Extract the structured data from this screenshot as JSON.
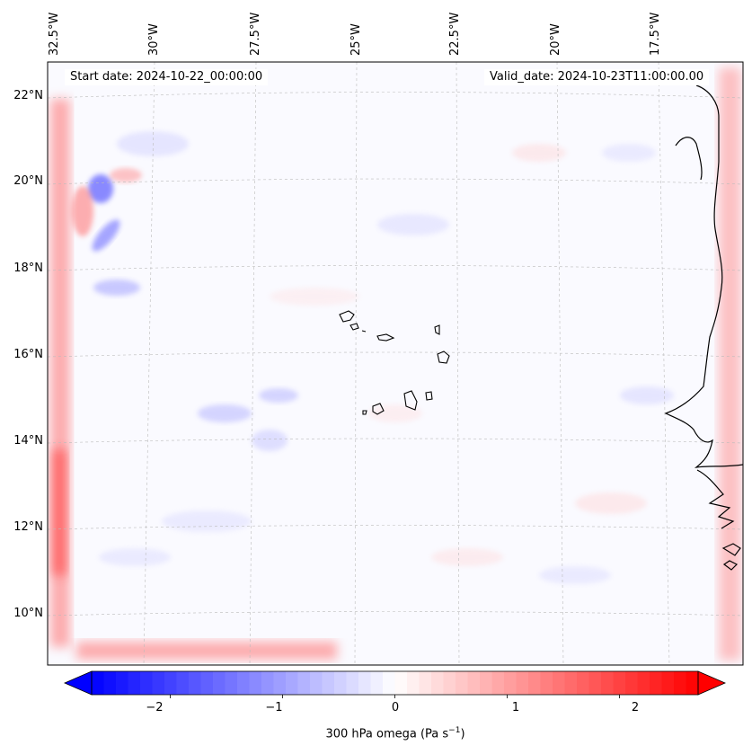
{
  "header": {
    "start_date": "Start date: 2024-10-22_00:00:00",
    "valid_date": "Valid_date: 2024-10-23T11:00:00.00"
  },
  "map": {
    "projection": "lambert-conformal",
    "coastline_color": "#000000",
    "gridline_color": "#bbbbbb",
    "lon_labels": [
      "32.5°W",
      "30°W",
      "27.5°W",
      "25°W",
      "22.5°W",
      "20°W",
      "17.5°W"
    ],
    "lat_labels": [
      "22°N",
      "20°N",
      "18°N",
      "16°N",
      "14°N",
      "12°N",
      "10°N"
    ]
  },
  "colorbar": {
    "title_prefix": "300 hPa omega (Pa s",
    "title_exp": "−1",
    "title_suffix": ")",
    "tick_labels": [
      "−2",
      "−1",
      "0",
      "1",
      "2"
    ],
    "vmin": -2.7,
    "vmax": 2.7,
    "negative_color": "#0000ff",
    "positive_color": "#ff0000",
    "extend": "both"
  }
}
